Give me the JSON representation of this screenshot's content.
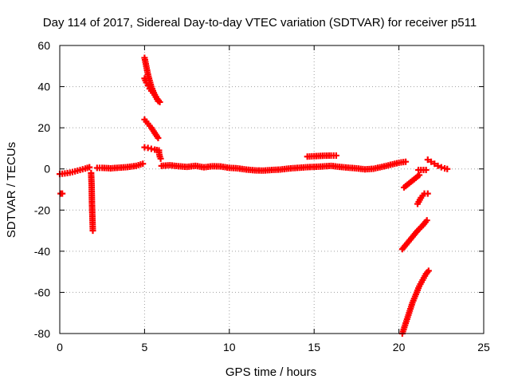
{
  "chart_data": {
    "type": "scatter",
    "title": "Day 114 of 2017, Sidereal Day-to-day VTEC variation (SDTVAR) for receiver p511",
    "xlabel": "GPS time / hours",
    "ylabel": "SDTVAR / TECUs",
    "xlim": [
      0,
      25
    ],
    "ylim": [
      -80,
      60
    ],
    "x_ticks": [
      0,
      5,
      10,
      15,
      20,
      25
    ],
    "y_ticks": [
      -80,
      -60,
      -40,
      -20,
      0,
      20,
      40,
      60
    ],
    "x_tick_labels": [
      "0",
      "5",
      "10",
      "15",
      "20",
      "25"
    ],
    "y_tick_labels": [
      "-80",
      "-60",
      "-40",
      "-20",
      "0",
      "20",
      "40",
      "60"
    ],
    "grid": true,
    "marker": "plus",
    "color": "#ff0000",
    "series": [
      {
        "segments": [
          {
            "x": [
              0.0,
              0.3,
              0.6,
              0.9,
              1.2,
              1.5,
              1.75
            ],
            "y": [
              -2.5,
              -2.2,
              -1.8,
              -1.2,
              -0.5,
              0.2,
              0.8
            ]
          },
          {
            "x": [
              0.05,
              0.15
            ],
            "y": [
              -12,
              -12
            ]
          },
          {
            "x": [
              1.85,
              1.88,
              1.9,
              1.92,
              1.95
            ],
            "y": [
              -2,
              -8,
              -17,
              -22,
              -30
            ]
          },
          {
            "x": [
              2.2,
              2.5,
              3.0,
              3.5,
              4.0,
              4.5,
              4.9
            ],
            "y": [
              0.5,
              0.5,
              0.3,
              0.6,
              0.9,
              1.5,
              2.5
            ]
          },
          {
            "x": [
              5.0,
              5.1,
              5.2,
              5.3,
              5.4,
              5.5,
              5.6,
              5.75,
              5.9
            ],
            "y": [
              54,
              50,
              46,
              43,
              40,
              38,
              36,
              34,
              32.5
            ]
          },
          {
            "x": [
              5.0,
              5.1,
              5.2,
              5.3,
              5.4,
              5.6,
              5.8
            ],
            "y": [
              44,
              42,
              40.5,
              39,
              38,
              36,
              33
            ]
          },
          {
            "x": [
              5.0,
              5.2,
              5.4,
              5.6,
              5.8
            ],
            "y": [
              24,
              22,
              20,
              17.5,
              15
            ]
          },
          {
            "x": [
              5.0,
              5.2,
              5.4,
              5.6,
              5.85
            ],
            "y": [
              10.5,
              10.2,
              9.8,
              9.4,
              9
            ]
          },
          {
            "x": [
              5.85,
              5.9,
              5.95
            ],
            "y": [
              8,
              6,
              5
            ]
          },
          {
            "x": [
              6.0,
              6.5,
              7.0,
              7.5,
              8.0,
              8.5,
              9.0,
              9.5,
              10.0,
              10.5,
              11.0,
              11.5,
              12.0,
              12.5,
              13.0,
              13.5,
              14.0,
              14.5,
              15.0,
              15.5,
              16.0,
              16.5,
              17.0,
              17.5,
              18.0,
              18.5,
              19.0,
              19.5,
              20.0,
              20.4
            ],
            "y": [
              1.5,
              1.8,
              1.3,
              1.0,
              1.5,
              0.8,
              1.3,
              1.2,
              0.5,
              0.3,
              -0.3,
              -0.7,
              -0.8,
              -0.5,
              -0.3,
              0.2,
              0.5,
              0.8,
              1.0,
              1.2,
              1.5,
              1.0,
              0.6,
              0.3,
              -0.2,
              0.1,
              1.0,
              2.0,
              3.0,
              3.5
            ]
          },
          {
            "x": [
              14.6,
              15.0,
              15.5,
              16.0,
              16.3
            ],
            "y": [
              6,
              6.2,
              6.4,
              6.5,
              6.5
            ]
          },
          {
            "x": [
              20.3,
              20.6,
              20.9,
              21.2
            ],
            "y": [
              -9,
              -7,
              -5,
              -3
            ]
          },
          {
            "x": [
              21.15,
              21.3,
              21.6
            ],
            "y": [
              -0.5,
              -0.5,
              -0.5
            ]
          },
          {
            "x": [
              21.1,
              21.3,
              21.5,
              21.7
            ],
            "y": [
              -17,
              -14,
              -12,
              -12
            ]
          },
          {
            "x": [
              20.2,
              20.5,
              20.8,
              21.1,
              21.4,
              21.65
            ],
            "y": [
              -39,
              -36,
              -33,
              -30,
              -27.5,
              -25
            ]
          },
          {
            "x": [
              20.2,
              20.4,
              20.6,
              20.8,
              21.0,
              21.2,
              21.4,
              21.6,
              21.75
            ],
            "y": [
              -80,
              -75,
              -70,
              -65,
              -61,
              -57,
              -54,
              -51,
              -49.5
            ]
          },
          {
            "x": [
              21.7,
              21.9,
              22.1,
              22.3,
              22.5,
              22.7,
              22.85
            ],
            "y": [
              4.5,
              3.5,
              2.5,
              1.5,
              0.8,
              0.3,
              0
            ]
          }
        ]
      }
    ]
  }
}
